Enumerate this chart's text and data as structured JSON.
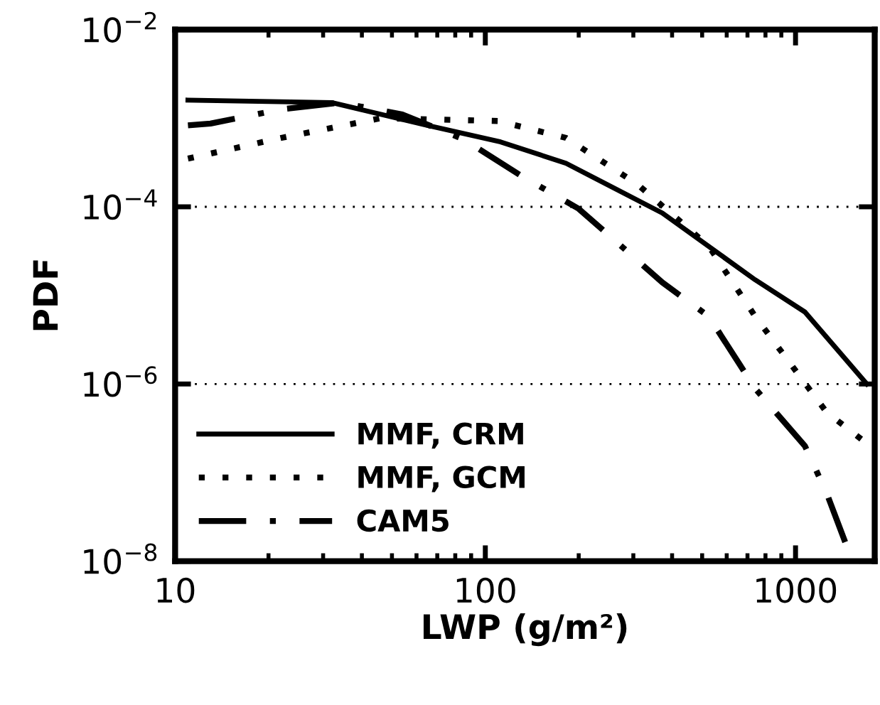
{
  "chart_data": {
    "type": "line",
    "xlabel": "LWP (g/m²)",
    "ylabel": "PDF",
    "log": "xy",
    "grid": "y",
    "legend": "bottom left",
    "xlim": [
      10,
      1800
    ],
    "xticks": [
      10,
      100,
      1000
    ],
    "ylim": [
      1e-08,
      0.01
    ],
    "yticks": [
      {
        "value": 0.01,
        "label": "10$^{−2}$"
      },
      {
        "value": 0.0001,
        "label": "10$^{−4}$"
      },
      {
        "value": 1e-06,
        "label": "10$^{−6}$"
      },
      {
        "value": 1e-08,
        "label": "10$^{−8}$"
      }
    ],
    "series": [
      {
        "name": "MMF, CRM",
        "color": "#000000",
        "line_style": "solid",
        "x": [
          11,
          32,
          65,
          112,
          182,
          372,
          741,
          1072,
          1698
        ],
        "values": [
          0.0016,
          0.0015,
          0.00083,
          0.00054,
          0.00031,
          8.5e-05,
          1.5e-05,
          6.5e-06,
          1e-06
        ]
      },
      {
        "name": "MMF, GCM",
        "color": "#000000",
        "line_style": "dotted",
        "x": [
          11,
          22,
          46,
          110,
          182,
          309,
          525,
          741,
          1259,
          1738
        ],
        "values": [
          0.00035,
          0.0006,
          0.001,
          0.00093,
          0.0006,
          0.00018,
          3.6e-05,
          5.8e-06,
          4.8e-07,
          2e-07
        ]
      },
      {
        "name": "CAM5",
        "color": "#000000",
        "line_style": "dashdot",
        "x": [
          11,
          13,
          22,
          34,
          54,
          85,
          129,
          200,
          263,
          372,
          525,
          741,
          1072,
          1259,
          1514
        ],
        "values": [
          0.00083,
          0.00087,
          0.00126,
          0.0015,
          0.0011,
          0.00058,
          0.00023,
          9.5e-05,
          4.1e-05,
          1.4e-05,
          5.8e-06,
          8.9e-07,
          2e-07,
          5.9e-08,
          1.07e-08
        ]
      }
    ]
  }
}
